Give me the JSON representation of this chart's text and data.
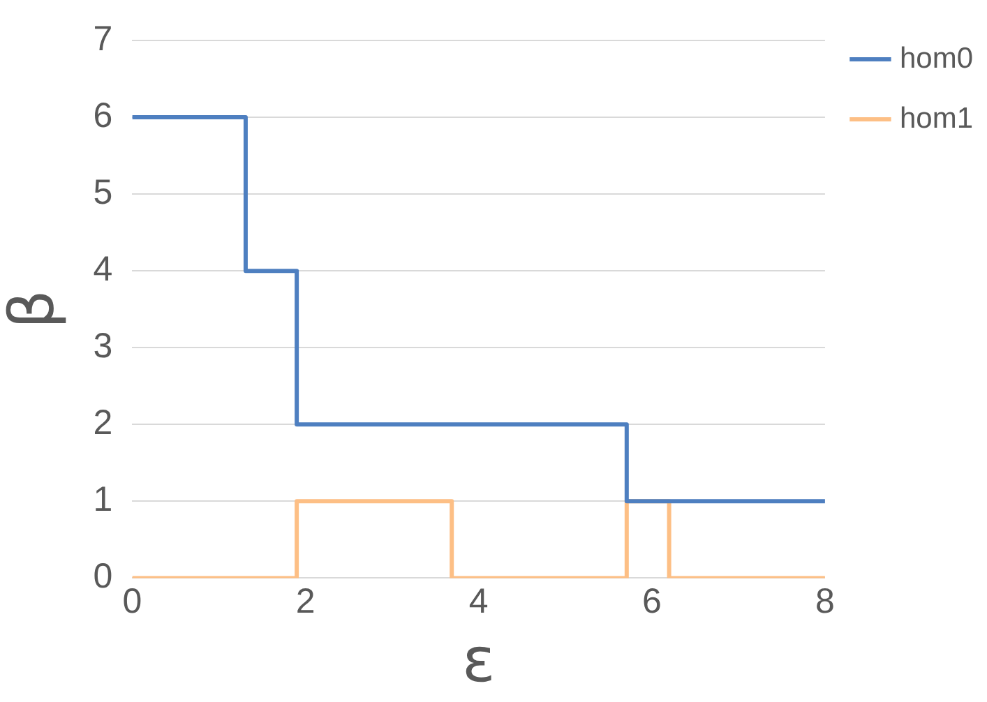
{
  "chart_data": {
    "type": "step",
    "xlabel": "ε",
    "ylabel": "β",
    "series": [
      {
        "name": "hom0",
        "color": "#4e7fc0",
        "x": [
          0,
          1.31,
          1.9,
          5.71,
          8
        ],
        "values": [
          6,
          4,
          2,
          1,
          1
        ]
      },
      {
        "name": "hom1",
        "color": "#fdbf85",
        "x": [
          0,
          1.9,
          3.69,
          5.71,
          6.2,
          8
        ],
        "values": [
          0,
          1,
          0,
          1,
          0,
          0
        ]
      }
    ],
    "xlim": [
      0,
      8
    ],
    "xticks": [
      0,
      2,
      4,
      6,
      8
    ],
    "ylim": [
      0,
      7
    ],
    "yticks": [
      0,
      1,
      2,
      3,
      4,
      5,
      6,
      7
    ],
    "grid": "y",
    "legend": "top right",
    "marker": "none",
    "line_style": "solid"
  }
}
